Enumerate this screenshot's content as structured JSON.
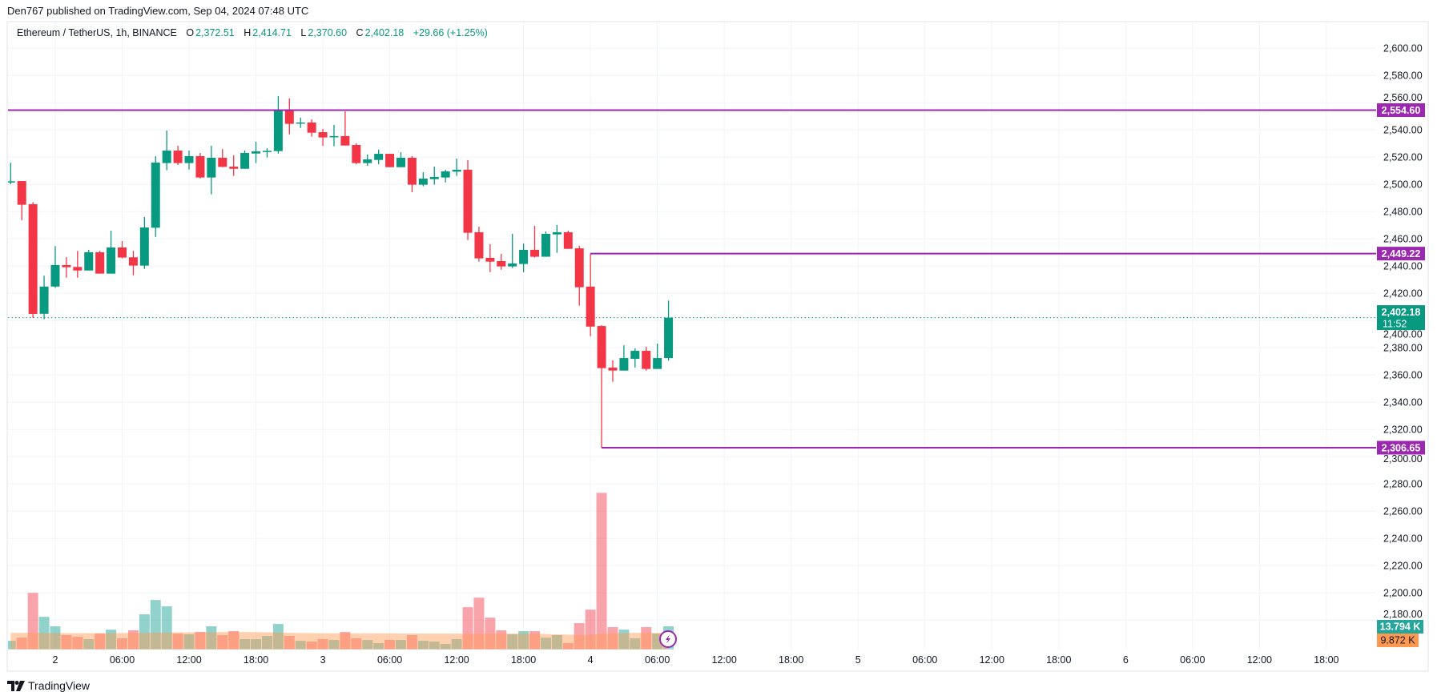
{
  "header": {
    "published": "Den767 published on TradingView.com, Sep 04, 2024 07:48 UTC"
  },
  "legend": {
    "symbol": "Ethereum / TetherUS, 1h, BINANCE",
    "o_label": "O",
    "o_value": "2,372.51",
    "h_label": "H",
    "h_value": "2,414.71",
    "l_label": "L",
    "l_value": "2,370.60",
    "c_label": "C",
    "c_value": "2,402.18",
    "change": "+29.66 (+1.25%)"
  },
  "footer": {
    "brand": "TradingView"
  },
  "colors": {
    "up": "#089981",
    "down": "#F23645",
    "level": "#9C27B0",
    "volume_up": "#26A69A",
    "volume_ma": "#FF9850",
    "grid": "#F0F3FA",
    "text": "#131722"
  },
  "chart_data": {
    "type": "candlestick",
    "interval": "1h",
    "ylim": [
      2180,
      2600
    ],
    "y_ticks": [
      "2,600.00",
      "2,580.00",
      "2,560.00",
      "2,540.00",
      "2,520.00",
      "2,500.00",
      "2,480.00",
      "2,460.00",
      "2,440.00",
      "2,420.00",
      "2,400.00",
      "2,380.00",
      "2,360.00",
      "2,340.00",
      "2,320.00",
      "2,300.00",
      "2,280.00",
      "2,260.00",
      "2,240.00",
      "2,220.00",
      "2,200.00",
      "2,180.00"
    ],
    "x_ticks": [
      "2",
      "06:00",
      "12:00",
      "18:00",
      "3",
      "06:00",
      "12:00",
      "18:00",
      "4",
      "06:00",
      "12:00",
      "18:00",
      "5",
      "06:00",
      "12:00",
      "18:00",
      "6",
      "06:00",
      "12:00",
      "18:00"
    ],
    "first_candle": "Sep 1 20:00",
    "candles": [
      [
        2501.5,
        2515.9,
        2500.2,
        2502.3
      ],
      [
        2502.5,
        2502.5,
        2473.7,
        2485.1
      ],
      [
        2485.5,
        2487,
        2402,
        2404.9
      ],
      [
        2405,
        2433,
        2401,
        2425
      ],
      [
        2425,
        2454.7,
        2424,
        2440.8
      ],
      [
        2440.8,
        2446.6,
        2431.5,
        2439.2
      ],
      [
        2439.4,
        2451.2,
        2431.5,
        2436.8
      ],
      [
        2436.8,
        2452,
        2436.8,
        2450.2
      ],
      [
        2450.2,
        2451.2,
        2434.5,
        2434.5
      ],
      [
        2434.5,
        2466.1,
        2434.5,
        2453.7
      ],
      [
        2453.7,
        2458.4,
        2445.7,
        2446.3
      ],
      [
        2446.5,
        2451.2,
        2433.3,
        2440.4
      ],
      [
        2440.4,
        2476.1,
        2438,
        2468.4
      ],
      [
        2468.2,
        2520.8,
        2461.5,
        2516.1
      ],
      [
        2515.7,
        2539.6,
        2510.4,
        2524.9
      ],
      [
        2524.9,
        2528.4,
        2514.3,
        2515.7
      ],
      [
        2515.7,
        2524.9,
        2511,
        2520.8
      ],
      [
        2520.8,
        2523.1,
        2504.5,
        2505.1
      ],
      [
        2505.1,
        2528.4,
        2492.7,
        2519.6
      ],
      [
        2519.6,
        2526,
        2512.7,
        2512.9
      ],
      [
        2513.1,
        2521.4,
        2506.3,
        2511.5
      ],
      [
        2511.5,
        2524.9,
        2511.5,
        2523.1
      ],
      [
        2522.7,
        2531.4,
        2515.7,
        2524.3
      ],
      [
        2524.3,
        2526.6,
        2519.8,
        2524.7
      ],
      [
        2524.5,
        2564.9,
        2522.7,
        2554.5
      ],
      [
        2554.5,
        2563.1,
        2536.8,
        2544.5
      ],
      [
        2545.1,
        2549,
        2541.5,
        2545.5
      ],
      [
        2545.5,
        2547.8,
        2535.1,
        2538
      ],
      [
        2538.4,
        2540.8,
        2528.4,
        2534.5
      ],
      [
        2535.2,
        2543.7,
        2528,
        2535.5
      ],
      [
        2535.5,
        2553.7,
        2528.6,
        2528.6
      ],
      [
        2529,
        2530.2,
        2514.9,
        2515.7
      ],
      [
        2515.7,
        2522,
        2513.7,
        2518.4
      ],
      [
        2518,
        2525.5,
        2514.9,
        2522.5
      ],
      [
        2522.5,
        2522.5,
        2512.7,
        2512.7
      ],
      [
        2512.7,
        2523.7,
        2512.7,
        2519.6
      ],
      [
        2519.6,
        2520.8,
        2494.3,
        2499.8
      ],
      [
        2499.8,
        2509,
        2498.6,
        2504.3
      ],
      [
        2503.9,
        2513.1,
        2499.8,
        2505.5
      ],
      [
        2505.1,
        2510.8,
        2501.5,
        2509.6
      ],
      [
        2509.4,
        2519,
        2506.3,
        2510.8
      ],
      [
        2510.8,
        2517.8,
        2459.2,
        2464.5
      ],
      [
        2464.9,
        2469,
        2443.3,
        2445.7
      ],
      [
        2446.1,
        2456.1,
        2435.6,
        2443.3
      ],
      [
        2443.7,
        2449,
        2437.4,
        2439.8
      ],
      [
        2439.8,
        2463.7,
        2438.6,
        2442
      ],
      [
        2441.6,
        2456.6,
        2435.6,
        2452
      ],
      [
        2452,
        2469.6,
        2446.3,
        2446.9
      ],
      [
        2446.9,
        2465.5,
        2446.9,
        2463.7
      ],
      [
        2463.3,
        2470.2,
        2449.8,
        2464.9
      ],
      [
        2464.9,
        2466.1,
        2452.7,
        2452.7
      ],
      [
        2453.1,
        2454.9,
        2411,
        2424.5
      ],
      [
        2425,
        2449.22,
        2388.6,
        2395.6
      ],
      [
        2396,
        2396.6,
        2306.65,
        2365.1
      ],
      [
        2365.5,
        2370.8,
        2355.1,
        2363.3
      ],
      [
        2363.3,
        2381.9,
        2363.3,
        2372.5
      ],
      [
        2371.9,
        2379.6,
        2365.5,
        2377.8
      ],
      [
        2377.8,
        2380.8,
        2363.3,
        2364.5
      ],
      [
        2364.5,
        2383.1,
        2364.5,
        2372.5
      ],
      [
        2372.51,
        2414.71,
        2370.6,
        2402.18
      ]
    ],
    "volume_k": [
      5.1,
      7.0,
      33.9,
      19.5,
      13.8,
      8.5,
      7.5,
      6.1,
      9.4,
      11.8,
      6.6,
      11.4,
      21,
      29.6,
      25.8,
      9.4,
      9,
      10.4,
      13.8,
      8.5,
      10.9,
      6.1,
      6.1,
      8,
      15.2,
      8,
      5.1,
      4.6,
      6.1,
      5.6,
      10.4,
      6.6,
      5.6,
      3.7,
      5.6,
      5.6,
      8.5,
      5.1,
      4.6,
      3.2,
      6.1,
      25.3,
      31,
      19,
      11.4,
      9,
      10.9,
      10.9,
      7,
      8.5,
      3.7,
      15.7,
      23.8,
      93.9,
      13.3,
      11.8,
      6.6,
      13.3,
      9.4,
      13.794
    ],
    "volume_ma_k": [
      9.9,
      9.9,
      9.9,
      9.8,
      9.7,
      9.7,
      9.7,
      9.7,
      9.7,
      9.7,
      9.8,
      9.8,
      9.9,
      10.0,
      10.1,
      10.2,
      10.2,
      10.3,
      10.3,
      10.4,
      10.4,
      10.4,
      10.3,
      10.2,
      10.1,
      9.9,
      9.8,
      9.7,
      9.6,
      9.6,
      9.6,
      9.6,
      9.6,
      9.6,
      9.6,
      9.5,
      9.5,
      9.5,
      9.5,
      9.5,
      9.4,
      9.4,
      9.4,
      9.5,
      9.5,
      9.5,
      9.4,
      9.3,
      9.2,
      9.0,
      8.8,
      8.6,
      8.8,
      9.3,
      9.6,
      9.8,
      9.9,
      9.9,
      9.9,
      9.872
    ],
    "levels": [
      {
        "value": 2554.6,
        "label": "2,554.60",
        "from_candle": 0
      },
      {
        "value": 2449.22,
        "label": "2,449.22",
        "from_candle": 52
      },
      {
        "value": 2306.65,
        "label": "2,306.65",
        "from_candle": 53
      }
    ],
    "last_price": {
      "value": 2402.18,
      "label": "2,402.18",
      "countdown": "11:52"
    },
    "volume_badge": {
      "label": "13.794 K"
    },
    "volume_ma_badge": {
      "label": "9.872 K"
    },
    "grid": true
  }
}
